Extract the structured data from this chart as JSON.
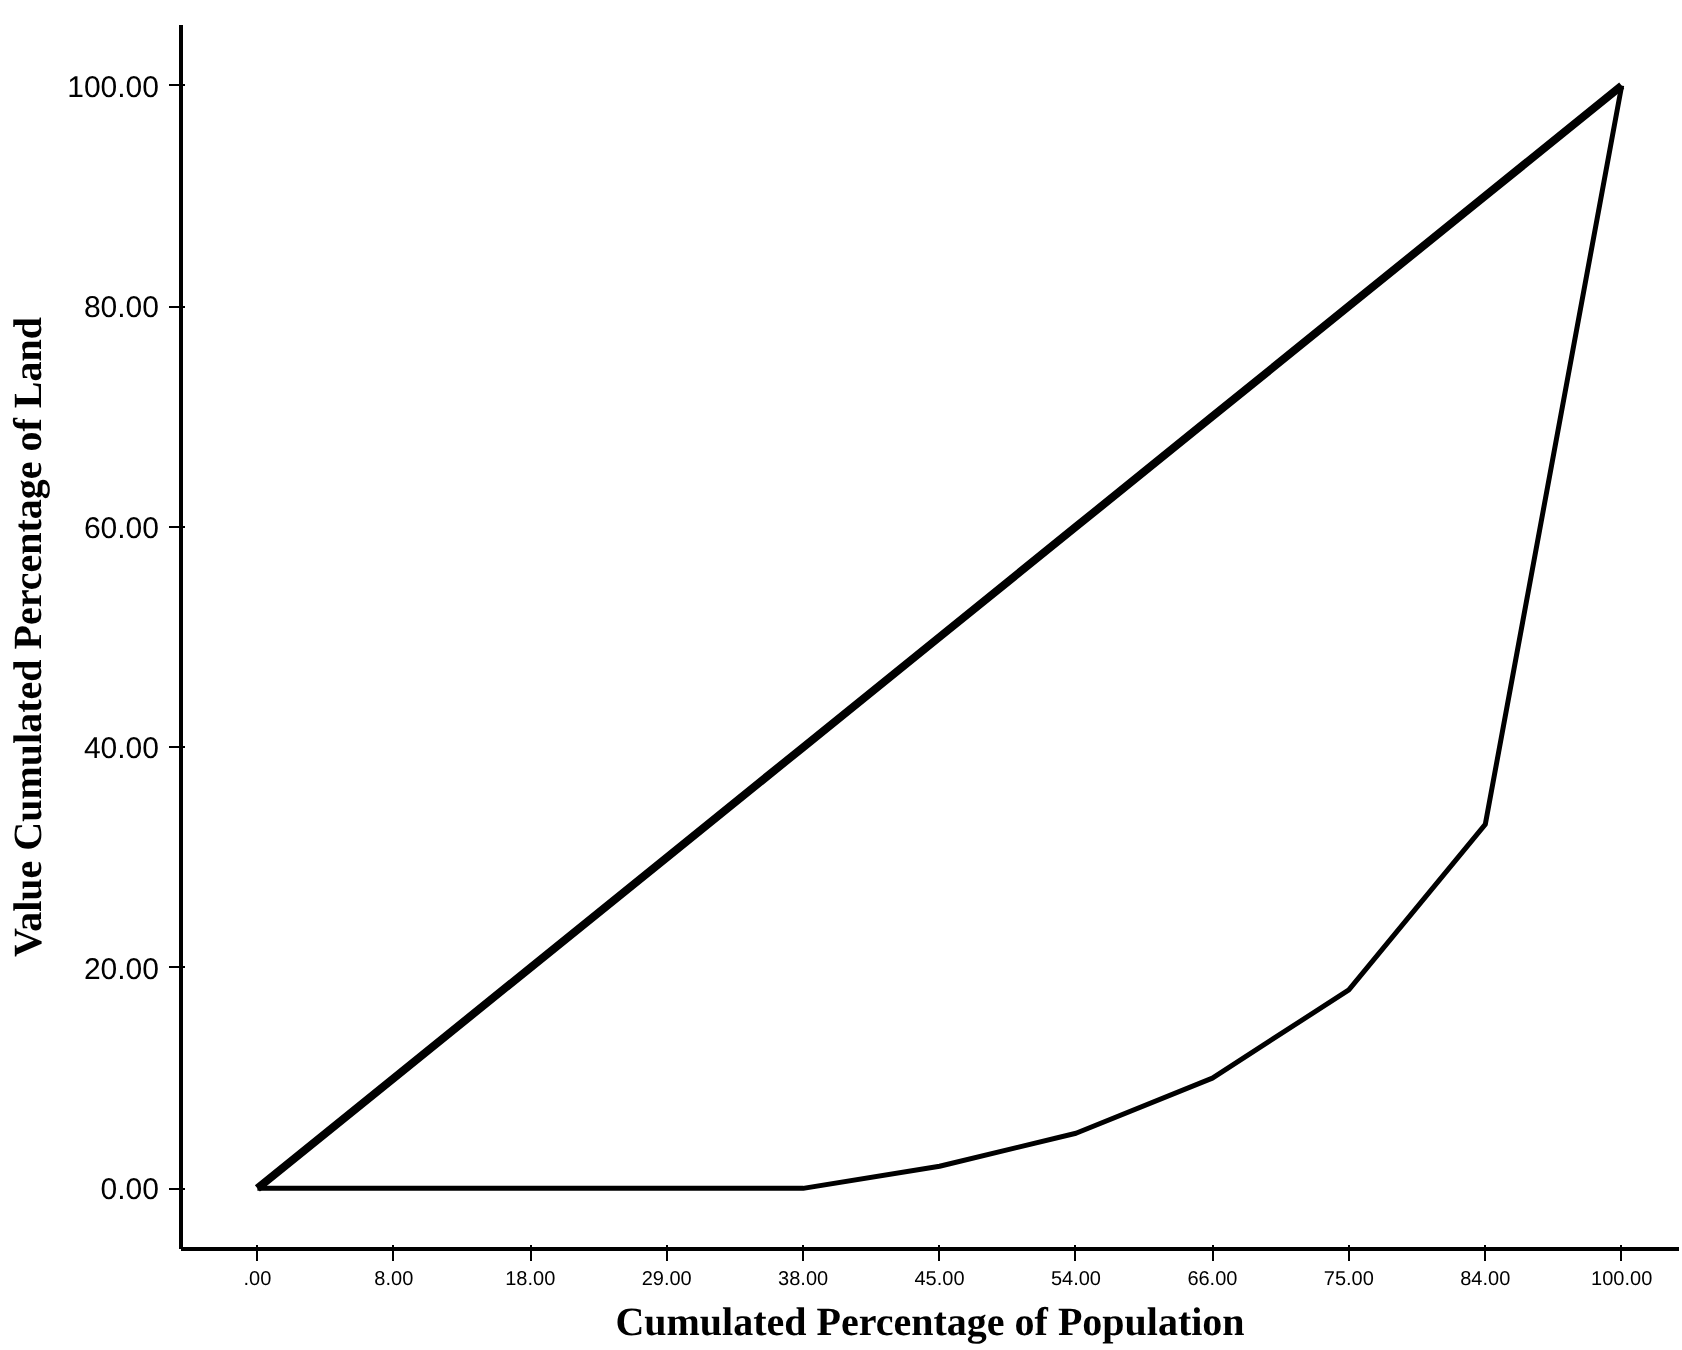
{
  "chart_data": {
    "type": "line",
    "xlabel": "Cumulated Percentage of Population",
    "ylabel": "Value Cumulated Percentage of Land",
    "categories": [
      ".00",
      "8.00",
      "18.00",
      "29.00",
      "38.00",
      "45.00",
      "54.00",
      "66.00",
      "75.00",
      "84.00",
      "100.00"
    ],
    "series": [
      {
        "color": "#000000",
        "values": [
          0,
          10,
          20,
          30,
          40,
          50,
          60,
          70,
          80,
          90,
          100
        ]
      },
      {
        "color": "#000000",
        "values": [
          0,
          0,
          0,
          0,
          0,
          2,
          5,
          10,
          18,
          33,
          100
        ]
      }
    ],
    "ylim": [
      -5.5,
      105.5
    ],
    "yticks": [
      {
        "value": 0,
        "label": "0.00"
      },
      {
        "value": 20,
        "label": "20.00"
      },
      {
        "value": 40,
        "label": "40.00"
      },
      {
        "value": 60,
        "label": "60.00"
      },
      {
        "value": 80,
        "label": "80.00"
      },
      {
        "value": 100,
        "label": "100.00"
      }
    ],
    "grid": false,
    "marker": "none",
    "line_style": "solid"
  }
}
